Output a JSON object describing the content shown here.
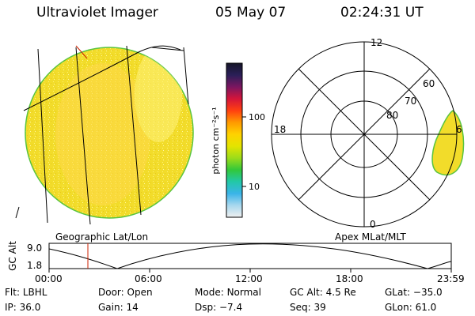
{
  "header": {
    "instrument": "Ultraviolet Imager",
    "date": "05 May 07",
    "time": "02:24:31 UT"
  },
  "colors": {
    "disk_fill": "#f2dc2a",
    "disk_edge": "#59c43f",
    "cursor_line": "#cc2200"
  },
  "colorbar": {
    "title": "photon cm⁻²s⁻¹",
    "ticks": [
      "100",
      "10"
    ],
    "scale": "log",
    "stops": [
      "#151528",
      "#2a1f58",
      "#7a1660",
      "#d4153a",
      "#ff4010",
      "#ff9a00",
      "#ffd200",
      "#e4e400",
      "#9cdc1a",
      "#32c83a",
      "#22c8a8",
      "#3ab4e8",
      "#a8d8ee",
      "#f0f0f0"
    ]
  },
  "left_panel": {
    "label": "Geographic Lat/Lon"
  },
  "polar": {
    "label": "Apex MLat/MLT",
    "mlt_labels": {
      "top": "12",
      "left": "18",
      "right": "6",
      "bottom": "0"
    },
    "lat_labels": [
      "80",
      "70",
      "60"
    ]
  },
  "altitude_plot": {
    "ylabel": "GC Alt",
    "yticks": [
      "9.0",
      "1.8"
    ],
    "xticks": [
      "00:00",
      "06:00",
      "12:00",
      "18:00",
      "23:59"
    ],
    "cursor_time": "02:24"
  },
  "status": [
    {
      "label": "Flt:",
      "value": "LBHL"
    },
    {
      "label": "Door:",
      "value": "Open"
    },
    {
      "label": "Mode:",
      "value": "Normal"
    },
    {
      "label": "GC Alt:",
      "value": "4.5 Re"
    },
    {
      "label": "GLat:",
      "value": "−35.0"
    },
    {
      "label": "IP:",
      "value": "36.0"
    },
    {
      "label": "Gain:",
      "value": "14"
    },
    {
      "label": "Dsp:",
      "value": "−7.4"
    },
    {
      "label": "Seq:",
      "value": "39"
    },
    {
      "label": "GLon:",
      "value": "61.0"
    }
  ]
}
